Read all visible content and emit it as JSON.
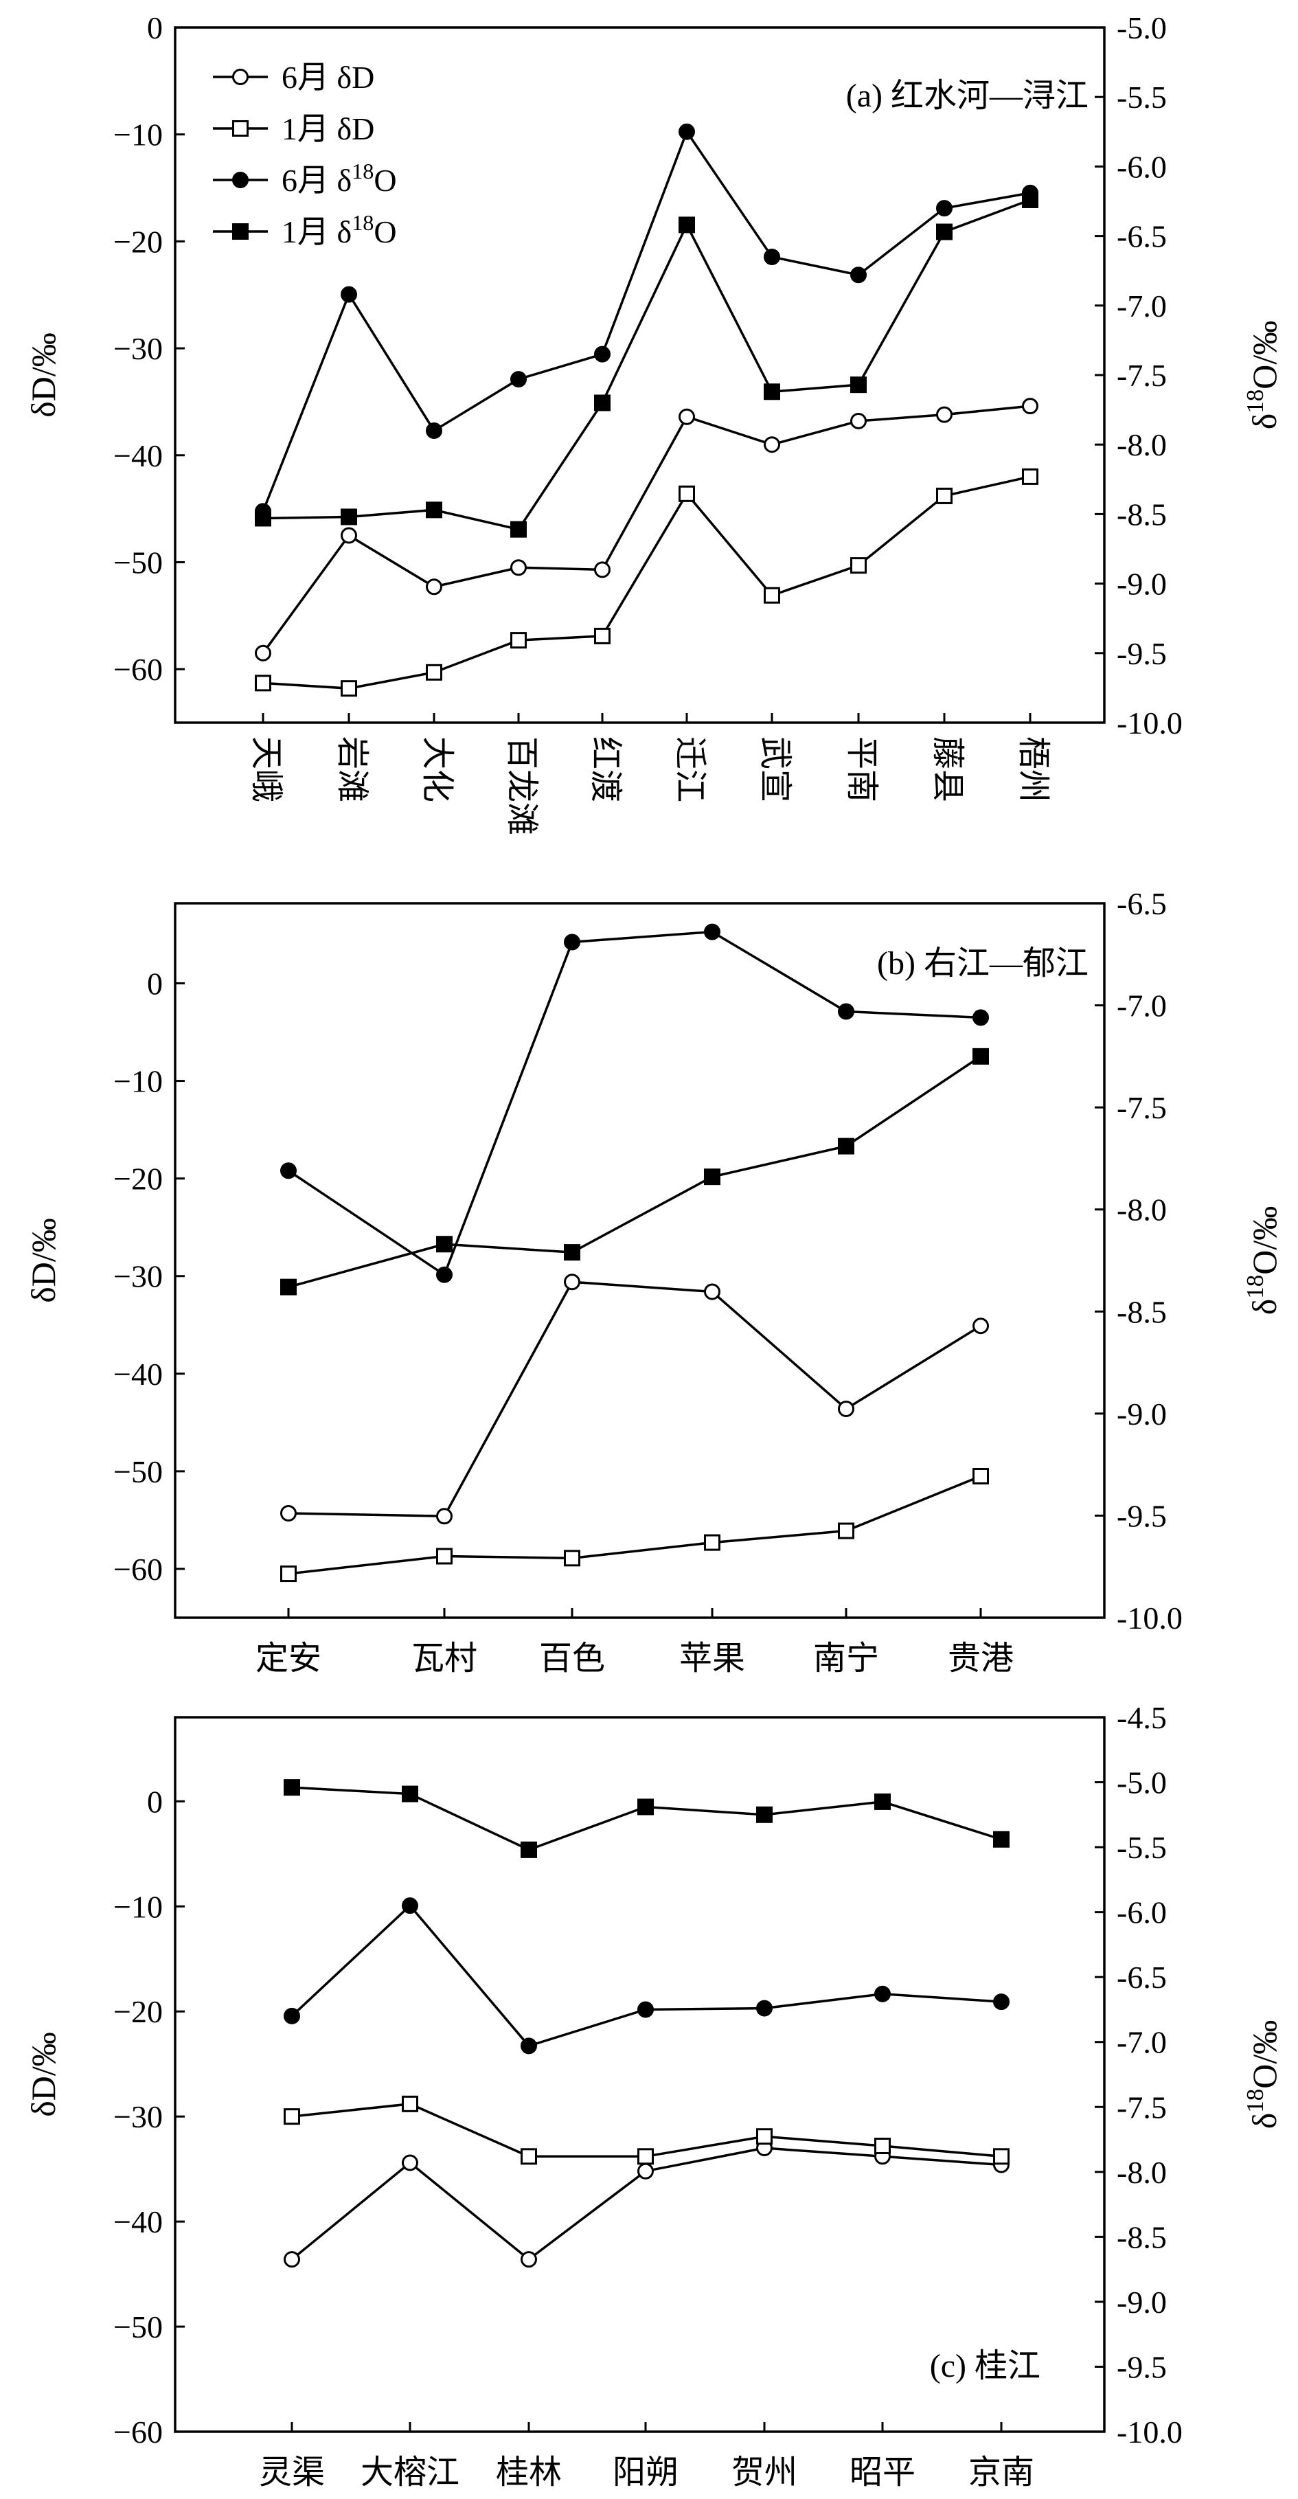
{
  "chart_data": [
    {
      "type": "line",
      "annotation": "(a) 红水河—浔江",
      "categories": [
        "天峨",
        "岩滩",
        "大化",
        "百龙滩",
        "红渡",
        "迁江",
        "武宣",
        "平南",
        "藤县",
        "梧州"
      ],
      "category_orientation": "vertical",
      "ylabel": "δD/‰",
      "ylim": [
        -65,
        0
      ],
      "yticks": [
        0,
        -10,
        -20,
        -30,
        -40,
        -50,
        -60
      ],
      "ytick_labels": [
        "0",
        "−10",
        "−20",
        "−30",
        "−40",
        "−50",
        "−60"
      ],
      "y2label": "δ18O/‰",
      "y2lim": [
        -10.0,
        -5.0
      ],
      "y2ticks": [
        -5.0,
        -5.5,
        -6.0,
        -6.5,
        -7.0,
        -7.5,
        -8.0,
        -8.5,
        -9.0,
        -9.5,
        -10.0
      ],
      "y2tick_labels": [
        "-5.0",
        "-5.5",
        "-6.0",
        "-6.5",
        "-7.0",
        "-7.5",
        "-8.0",
        "-8.5",
        "-9.0",
        "-9.5",
        "-10.0"
      ],
      "legend_position": "top-left",
      "series": [
        {
          "name": "6月 δD",
          "axis": "left",
          "marker": "circle-open",
          "values": [
            -58.5,
            -47.5,
            -52.3,
            -50.5,
            -50.7,
            -36.4,
            -39.0,
            -36.8,
            -36.2,
            -35.4
          ]
        },
        {
          "name": "1月 δD",
          "axis": "left",
          "marker": "square-open",
          "values": [
            -61.3,
            -61.8,
            -60.3,
            -57.3,
            -56.9,
            -43.6,
            -53.1,
            -50.3,
            -43.8,
            -42.0
          ]
        },
        {
          "name": "6月 δ18O",
          "axis": "right",
          "marker": "circle-filled",
          "values": [
            -8.48,
            -6.92,
            -7.9,
            -7.53,
            -7.35,
            -5.75,
            -6.65,
            -6.78,
            -6.3,
            -6.19
          ]
        },
        {
          "name": "1月 δ18O",
          "axis": "right",
          "marker": "square-filled",
          "values": [
            -8.53,
            -8.52,
            -8.47,
            -8.61,
            -7.7,
            -6.42,
            -7.62,
            -7.57,
            -6.47,
            -6.24
          ]
        }
      ]
    },
    {
      "type": "line",
      "annotation": "(b) 右江—郁江",
      "categories": [
        "定安",
        "瓦村",
        "百色",
        "苹果",
        "南宁",
        "贵港"
      ],
      "category_orientation": "horizontal",
      "ylabel": "δD/‰",
      "ylim": [
        -65,
        8.2
      ],
      "yticks": [
        0,
        -10,
        -20,
        -30,
        -40,
        -50,
        -60
      ],
      "ytick_labels": [
        "0",
        "−10",
        "−20",
        "−30",
        "−40",
        "−50",
        "−60"
      ],
      "y2label": "δ18O/‰",
      "y2lim": [
        -10.0,
        -6.5
      ],
      "y2ticks": [
        -6.5,
        -7.0,
        -7.5,
        -8.0,
        -8.5,
        -9.0,
        -9.5,
        -10.0
      ],
      "y2tick_labels": [
        "-6.5",
        "-7.0",
        "-7.5",
        "-8.0",
        "-8.5",
        "-9.0",
        "-9.5",
        "-10.0"
      ],
      "series": [
        {
          "name": "6月 δD",
          "axis": "left",
          "marker": "circle-open",
          "values": [
            -54.3,
            -54.6,
            -30.6,
            -31.6,
            -43.6,
            -35.1
          ]
        },
        {
          "name": "1月 δD",
          "axis": "left",
          "marker": "square-open",
          "values": [
            -60.5,
            -58.7,
            -58.9,
            -57.3,
            -56.1,
            -50.5
          ]
        },
        {
          "name": "6月 δ18O",
          "axis": "right",
          "marker": "circle-filled",
          "values": [
            -7.81,
            -8.32,
            -6.69,
            -6.64,
            -7.03,
            -7.06
          ]
        },
        {
          "name": "1月 δ18O",
          "axis": "right",
          "marker": "square-filled",
          "values": [
            -8.38,
            -8.17,
            -8.21,
            -7.84,
            -7.69,
            -7.25
          ]
        }
      ]
    },
    {
      "type": "line",
      "annotation": "(c) 桂江",
      "categories": [
        "灵渠",
        "大榕江",
        "桂林",
        "阳朔",
        "贺州",
        "昭平",
        "京南"
      ],
      "category_orientation": "horizontal",
      "ylabel": "δD/‰",
      "ylim": [
        -60,
        8
      ],
      "yticks": [
        0,
        -10,
        -20,
        -30,
        -40,
        -50,
        -60
      ],
      "ytick_labels": [
        "0",
        "−10",
        "−20",
        "−30",
        "−40",
        "−50",
        "−60"
      ],
      "y2label": "δ18O/‰",
      "y2lim": [
        -10.0,
        -4.5
      ],
      "y2ticks": [
        -4.5,
        -5.0,
        -5.5,
        -6.0,
        -6.5,
        -7.0,
        -7.5,
        -8.0,
        -8.5,
        -9.0,
        -9.5,
        -10.0
      ],
      "y2tick_labels": [
        "-4.5",
        "-5.0",
        "-5.5",
        "-6.0",
        "-6.5",
        "-7.0",
        "-7.5",
        "-8.0",
        "-8.5",
        "-9.0",
        "-9.5",
        "-10.0"
      ],
      "series": [
        {
          "name": "6月 δD",
          "axis": "left",
          "marker": "circle-open",
          "values": [
            -43.6,
            -34.4,
            -43.6,
            -35.2,
            -33.0,
            -33.8,
            -34.6
          ]
        },
        {
          "name": "1月 δD",
          "axis": "left",
          "marker": "square-open",
          "values": [
            -30.0,
            -28.8,
            -33.8,
            -33.8,
            -31.9,
            -32.8,
            -33.8
          ]
        },
        {
          "name": "6月 δ18O",
          "axis": "right",
          "marker": "circle-filled",
          "values": [
            -6.8,
            -5.95,
            -7.03,
            -6.75,
            -6.74,
            -6.63,
            -6.69
          ]
        },
        {
          "name": "1月 δ18O",
          "axis": "right",
          "marker": "square-filled",
          "values": [
            -5.04,
            -5.09,
            -5.52,
            -5.19,
            -5.25,
            -5.15,
            -5.44
          ]
        }
      ]
    }
  ]
}
